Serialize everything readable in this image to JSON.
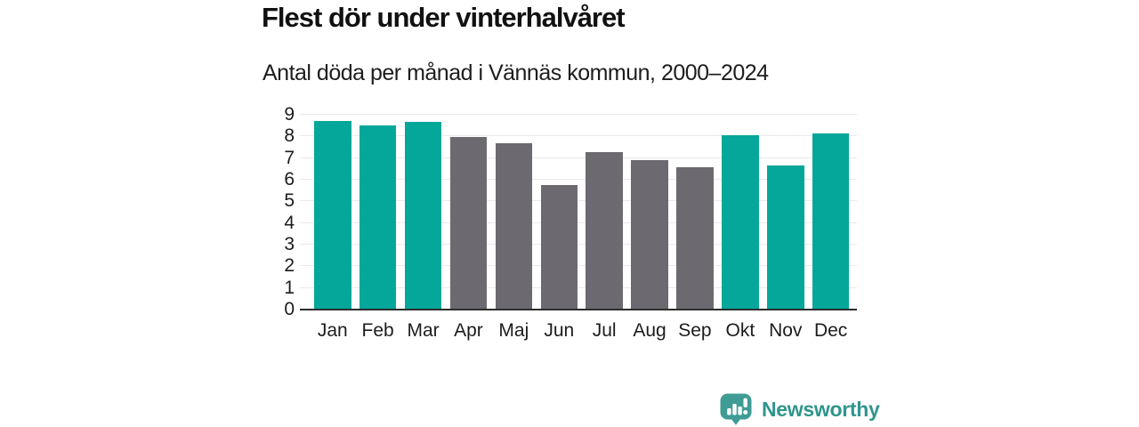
{
  "header": {
    "title": "Flest dör under vinterhalvåret",
    "subtitle": "Antal döda per månad i Vännäs kommun, 2000–2024"
  },
  "branding": {
    "logo_text": "Newsworthy",
    "logo_icon": "bar-chart-speech-bubble-icon",
    "logo_color": "#3f9c95",
    "text_color": "#2f958d"
  },
  "colors": {
    "highlight": "#05a79a",
    "neutral": "#6c6a70",
    "gridline": "#e9e9eb",
    "axis_line": "#2d2d2d",
    "text": "#1c1c1c"
  },
  "chart_data": {
    "type": "bar",
    "title": "Flest dör under vinterhalvåret",
    "subtitle": "Antal döda per månad i Vännäs kommun, 2000–2024",
    "categories": [
      "Jan",
      "Feb",
      "Mar",
      "Apr",
      "Maj",
      "Jun",
      "Jul",
      "Aug",
      "Sep",
      "Okt",
      "Nov",
      "Dec"
    ],
    "values": [
      8.72,
      8.52,
      8.68,
      7.96,
      7.68,
      5.76,
      7.28,
      6.92,
      6.56,
      8.04,
      6.64,
      8.12
    ],
    "bar_colors": [
      "#05a79a",
      "#05a79a",
      "#05a79a",
      "#6c6a70",
      "#6c6a70",
      "#6c6a70",
      "#6c6a70",
      "#6c6a70",
      "#6c6a70",
      "#05a79a",
      "#05a79a",
      "#05a79a"
    ],
    "highlighted_categories": [
      "Jan",
      "Feb",
      "Mar",
      "Okt",
      "Nov",
      "Dec"
    ],
    "xlabel": "",
    "ylabel": "",
    "ylim": [
      0,
      9
    ],
    "yticks": [
      0,
      1,
      2,
      3,
      4,
      5,
      6,
      7,
      8,
      9
    ],
    "grid": "horizontal",
    "legend": "none"
  }
}
